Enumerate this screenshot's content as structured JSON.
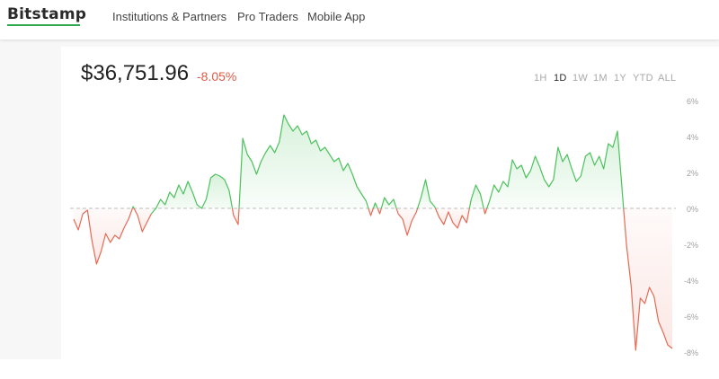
{
  "header": {
    "logo": "Bitstamp",
    "nav": [
      "Institutions & Partners",
      "Pro Traders",
      "Mobile App"
    ]
  },
  "ticker": {
    "price": "$36,751.96",
    "change": "-8.05%"
  },
  "ranges": {
    "items": [
      "1H",
      "1D",
      "1W",
      "1M",
      "1Y",
      "YTD",
      "ALL"
    ],
    "active": "1D"
  },
  "colors": {
    "up": "#4cc25c",
    "down": "#e66a55",
    "brand": "#2fa84f"
  },
  "chart_data": {
    "type": "area",
    "ylabel": "",
    "xlabel": "",
    "yticks": [
      "6%",
      "4%",
      "2%",
      "0%",
      "-2%",
      "-4%",
      "-6%",
      "-8%"
    ],
    "ylim": [
      -8,
      6
    ],
    "baseline": 0,
    "values": [
      -0.6,
      -1.2,
      -0.3,
      -0.1,
      -1.8,
      -3.1,
      -2.4,
      -1.4,
      -1.9,
      -1.5,
      -1.7,
      -1.1,
      -0.6,
      0.1,
      -0.4,
      -1.3,
      -0.8,
      -0.3,
      0.0,
      0.5,
      0.2,
      0.9,
      0.6,
      1.3,
      0.8,
      1.5,
      0.9,
      0.2,
      0.0,
      0.5,
      1.7,
      1.9,
      1.8,
      1.6,
      1.0,
      -0.4,
      -0.9,
      3.9,
      3.0,
      2.6,
      1.9,
      2.6,
      3.1,
      3.5,
      3.1,
      3.7,
      5.2,
      4.7,
      4.3,
      4.6,
      4.1,
      4.3,
      3.6,
      3.8,
      3.2,
      3.4,
      3.0,
      2.6,
      2.8,
      2.1,
      2.5,
      1.9,
      1.2,
      0.8,
      0.4,
      -0.4,
      0.3,
      -0.3,
      0.6,
      0.2,
      0.5,
      -0.3,
      -0.6,
      -1.5,
      -0.7,
      -0.2,
      0.6,
      1.6,
      0.4,
      0.1,
      -0.5,
      -0.9,
      -0.2,
      -0.8,
      -1.1,
      -0.4,
      -0.8,
      0.5,
      1.3,
      0.8,
      -0.3,
      0.4,
      1.3,
      0.9,
      1.5,
      1.2,
      2.7,
      2.2,
      2.4,
      1.7,
      2.1,
      2.9,
      2.3,
      1.6,
      1.2,
      1.6,
      3.4,
      2.6,
      3.0,
      2.2,
      1.5,
      1.8,
      2.9,
      3.1,
      2.4,
      2.9,
      2.2,
      3.6,
      3.4,
      4.3,
      1.1,
      -2.1,
      -4.3,
      -7.9,
      -5.0,
      -5.3,
      -4.4,
      -4.9,
      -6.3,
      -6.9,
      -7.6,
      -7.8
    ]
  }
}
